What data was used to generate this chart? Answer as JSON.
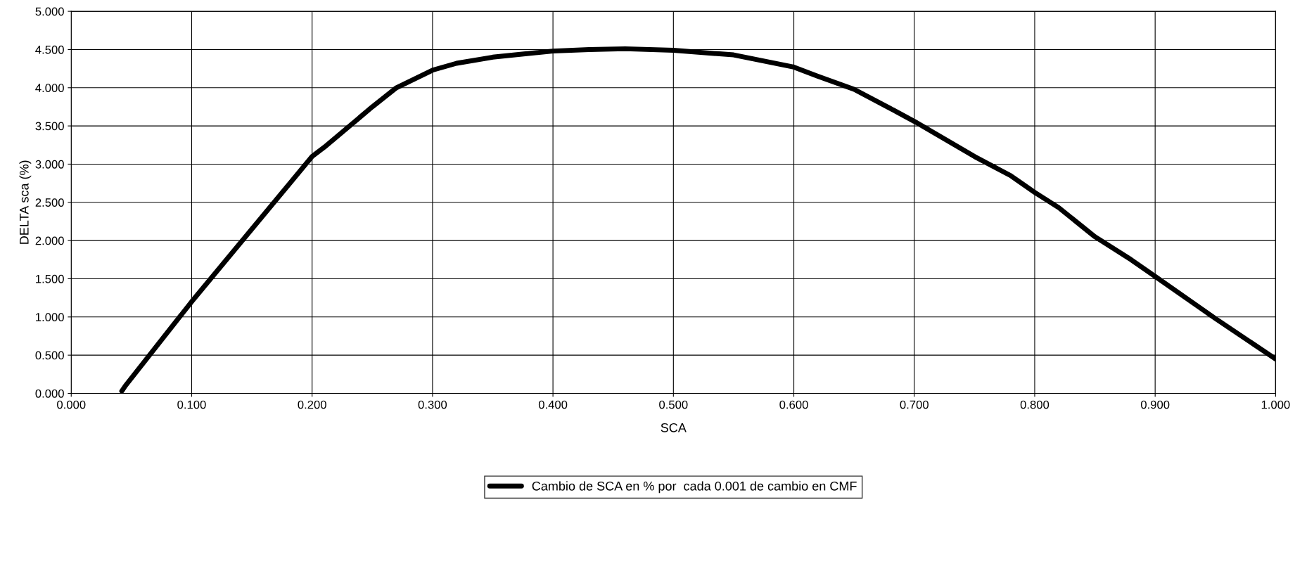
{
  "chart_data": {
    "type": "line",
    "xlabel": "SCA",
    "ylabel": "DELTA sca (%)",
    "xlim": [
      0,
      1
    ],
    "ylim": [
      0,
      5
    ],
    "xticks": [
      {
        "value": 0,
        "label": "0.000"
      },
      {
        "value": 0.1,
        "label": "0.100"
      },
      {
        "value": 0.2,
        "label": "0.200"
      },
      {
        "value": 0.3,
        "label": "0.300"
      },
      {
        "value": 0.4,
        "label": "0.400"
      },
      {
        "value": 0.5,
        "label": "0.500"
      },
      {
        "value": 0.6,
        "label": "0.600"
      },
      {
        "value": 0.7,
        "label": "0.700"
      },
      {
        "value": 0.8,
        "label": "0.800"
      },
      {
        "value": 0.9,
        "label": "0.900"
      },
      {
        "value": 1,
        "label": "1.000"
      }
    ],
    "yticks": [
      {
        "value": 0,
        "label": "0.000"
      },
      {
        "value": 0.5,
        "label": "0.500"
      },
      {
        "value": 1,
        "label": "1.000"
      },
      {
        "value": 1.5,
        "label": "1.500"
      },
      {
        "value": 2,
        "label": "2.000"
      },
      {
        "value": 2.5,
        "label": "2.500"
      },
      {
        "value": 3,
        "label": "3.000"
      },
      {
        "value": 3.5,
        "label": "3.500"
      },
      {
        "value": 4,
        "label": "4.000"
      },
      {
        "value": 4.5,
        "label": "4.500"
      },
      {
        "value": 5,
        "label": "5.000"
      }
    ],
    "grid": true,
    "legend": "bottom",
    "marker": "none",
    "line_style": "solid",
    "series": [
      {
        "name": "Cambio de SCA en % por  cada 0.001 de cambio en CMF",
        "color": "#000000",
        "x": [
          0.042,
          0.045,
          0.1,
          0.15,
          0.2,
          0.21,
          0.25,
          0.27,
          0.3,
          0.32,
          0.35,
          0.4,
          0.43,
          0.46,
          0.5,
          0.55,
          0.6,
          0.62,
          0.65,
          0.68,
          0.7,
          0.75,
          0.78,
          0.8,
          0.82,
          0.85,
          0.88,
          0.9,
          0.95,
          1.0
        ],
        "values": [
          0.03,
          0.1,
          1.2,
          2.15,
          3.1,
          3.22,
          3.75,
          4.0,
          4.23,
          4.32,
          4.4,
          4.48,
          4.5,
          4.51,
          4.49,
          4.43,
          4.27,
          4.15,
          3.98,
          3.73,
          3.56,
          3.1,
          2.85,
          2.63,
          2.43,
          2.05,
          1.75,
          1.53,
          0.98,
          0.45
        ]
      }
    ]
  }
}
